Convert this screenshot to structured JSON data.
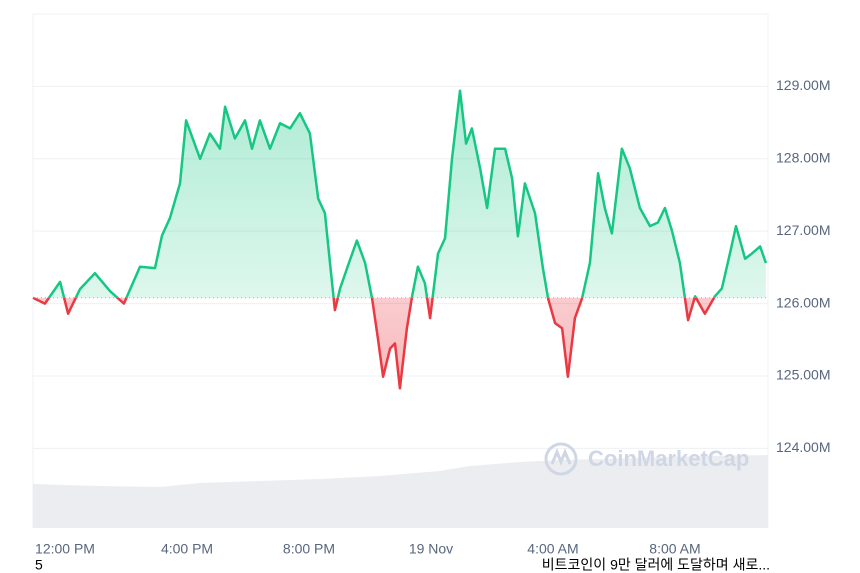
{
  "chart_data": {
    "type": "line",
    "x": [
      -1.05,
      -0.66,
      -0.16,
      0.1,
      0.49,
      0.98,
      1.48,
      1.93,
      2.46,
      2.95,
      3.18,
      3.44,
      3.77,
      3.97,
      4.16,
      4.43,
      4.75,
      5.08,
      5.25,
      5.57,
      5.9,
      6.13,
      6.39,
      6.72,
      7.05,
      7.38,
      7.7,
      8.03,
      8.3,
      8.52,
      8.69,
      8.85,
      9.02,
      9.34,
      9.57,
      9.84,
      10.07,
      10.26,
      10.43,
      10.66,
      10.82,
      10.98,
      11.21,
      11.38,
      11.57,
      11.8,
      11.97,
      12.23,
      12.46,
      12.69,
      12.95,
      13.15,
      13.34,
      13.61,
      13.84,
      14.1,
      14.43,
      14.66,
      14.85,
      15.08,
      15.41,
      15.67,
      15.84,
      16.07,
      16.3,
      16.49,
      16.72,
      16.95,
      17.21,
      17.48,
      17.7,
      17.93,
      18.26,
      18.52,
      18.85,
      19.18,
      19.44,
      19.67,
      19.9,
      20.16,
      20.43,
      20.66,
      20.98,
      21.31,
      21.54,
      21.8,
      22.0,
      22.3,
      22.52,
      22.79,
      22.98
    ],
    "values": [
      126.08,
      126.0,
      126.3,
      125.86,
      126.2,
      126.42,
      126.17,
      126.0,
      126.51,
      126.49,
      126.94,
      127.18,
      127.66,
      128.53,
      128.31,
      128.0,
      128.35,
      128.14,
      128.72,
      128.28,
      128.53,
      128.14,
      128.53,
      128.14,
      128.49,
      128.42,
      128.63,
      128.35,
      127.45,
      127.25,
      126.56,
      125.91,
      126.21,
      126.6,
      126.87,
      126.56,
      126.07,
      125.52,
      124.99,
      125.38,
      125.45,
      124.83,
      125.66,
      126.1,
      126.51,
      126.28,
      125.8,
      126.69,
      126.9,
      128.0,
      128.94,
      128.21,
      128.42,
      127.87,
      127.32,
      128.14,
      128.14,
      127.73,
      126.93,
      127.66,
      127.25,
      126.49,
      126.07,
      125.73,
      125.66,
      124.99,
      125.8,
      126.07,
      126.56,
      127.8,
      127.32,
      126.97,
      128.14,
      127.87,
      127.32,
      127.07,
      127.12,
      127.32,
      127.01,
      126.56,
      125.77,
      126.1,
      125.86,
      126.1,
      126.21,
      126.69,
      127.07,
      126.62,
      126.69,
      126.79,
      126.56
    ],
    "baseline": 126.08,
    "up_color": "#16c784",
    "down_color": "#ea3943",
    "xlim": [
      -1.05,
      23.05
    ],
    "xticks": [
      {
        "value": 0,
        "label": "12:00 PM"
      },
      {
        "value": 4,
        "label": "4:00 PM"
      },
      {
        "value": 8,
        "label": "8:00 PM"
      },
      {
        "value": 12,
        "label": "19 Nov"
      },
      {
        "value": 16,
        "label": "4:00 AM"
      },
      {
        "value": 20,
        "label": "8:00 AM"
      }
    ],
    "ylim": [
      122.9,
      130.0
    ],
    "yticks": [
      {
        "value": 124,
        "label": "124.00M"
      },
      {
        "value": 125,
        "label": "125.00M"
      },
      {
        "value": 126,
        "label": "126.00M"
      },
      {
        "value": 127,
        "label": "127.00M"
      },
      {
        "value": 128,
        "label": "128.00M"
      },
      {
        "value": 129,
        "label": "129.00M"
      }
    ],
    "grid": true,
    "watermark": "CoinMarketCap"
  },
  "page_number": "5",
  "caption": "비트코인이 9만 달러에 도달하며 새로..."
}
